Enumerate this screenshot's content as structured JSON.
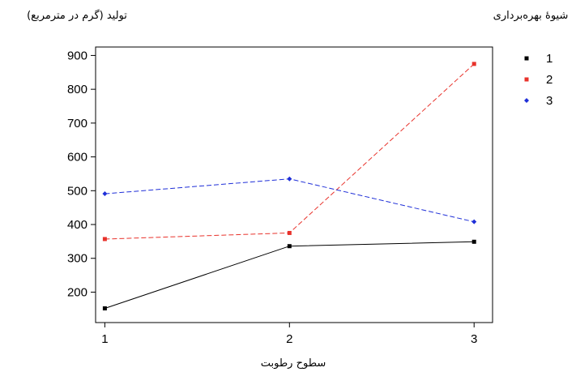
{
  "chart_data": {
    "type": "line",
    "title": "",
    "ylabel": "تولید (گرم در مترمربع)",
    "xlabel": "سطوح رطوبت",
    "legend_title": "شیوهٔ بهره‌برداری",
    "legend_position": "top-right",
    "grid": false,
    "x": [
      1,
      2,
      3
    ],
    "x_ticks": [
      "1",
      "2",
      "3"
    ],
    "y_ticks": [
      200,
      300,
      400,
      500,
      600,
      700,
      800,
      900
    ],
    "xlim": [
      0.95,
      3.1
    ],
    "ylim": [
      110,
      925
    ],
    "series": [
      {
        "name": "1",
        "values": [
          152,
          336,
          349
        ],
        "color": "#000000",
        "dash": "solid",
        "marker": "square"
      },
      {
        "name": "2",
        "values": [
          357,
          375,
          875
        ],
        "color": "#e8322b",
        "dash": "dashed",
        "marker": "square"
      },
      {
        "name": "3",
        "values": [
          491,
          535,
          408
        ],
        "color": "#1f2fd8",
        "dash": "dashed",
        "marker": "diamond"
      }
    ]
  }
}
